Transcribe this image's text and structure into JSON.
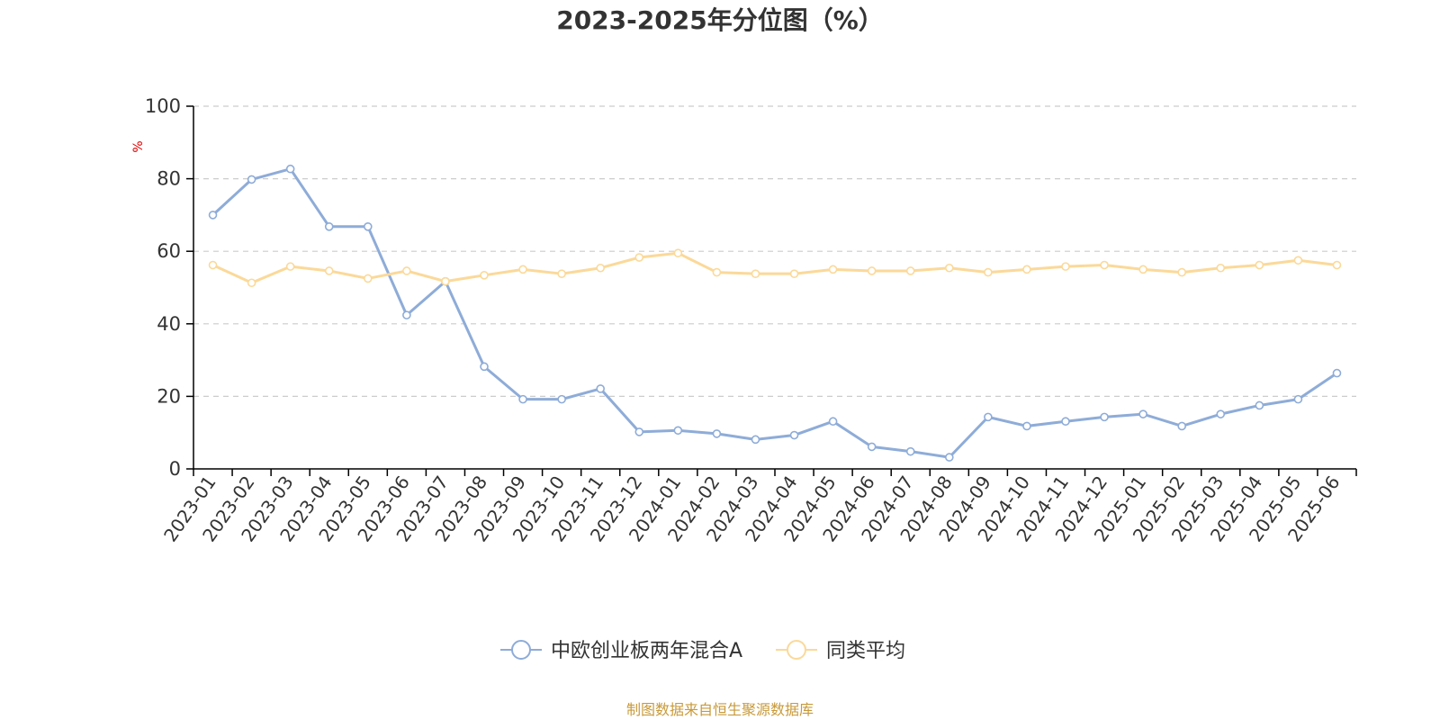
{
  "page": {
    "source": "制图数据来自恒生聚源数据库"
  },
  "chart_data": {
    "type": "line",
    "title": "2023-2025年分位图（%）",
    "xlabel": "",
    "ylabel": "%",
    "ylim": [
      0,
      100
    ],
    "yticks": [
      0,
      20,
      40,
      60,
      80,
      100
    ],
    "grid": true,
    "legend_position": "bottom-center",
    "categories": [
      "2023-01",
      "2023-02",
      "2023-03",
      "2023-04",
      "2023-05",
      "2023-06",
      "2023-07",
      "2023-08",
      "2023-09",
      "2023-10",
      "2023-11",
      "2023-12",
      "2024-01",
      "2024-02",
      "2024-03",
      "2024-04",
      "2024-05",
      "2024-06",
      "2024-07",
      "2024-08",
      "2024-09",
      "2024-10",
      "2024-11",
      "2024-12",
      "2025-01",
      "2025-02",
      "2025-03",
      "2025-04",
      "2025-05",
      "2025-06"
    ],
    "series": [
      {
        "name": "中欧创业板两年混合A",
        "color": "#8eacd8",
        "values": [
          70,
          79.8,
          82.7,
          66.8,
          66.8,
          42.4,
          51.7,
          28.2,
          19.2,
          19.2,
          22.1,
          10.2,
          10.6,
          9.7,
          8.1,
          9.3,
          13.1,
          6.1,
          4.8,
          3.2,
          14.3,
          11.8,
          13.1,
          14.3,
          15.1,
          11.8,
          15.1,
          17.5,
          19.2,
          26.4
        ]
      },
      {
        "name": "同类平均",
        "color": "#fbd999",
        "values": [
          56.2,
          51.3,
          55.8,
          54.6,
          52.5,
          54.6,
          51.7,
          53.4,
          55.0,
          53.8,
          55.4,
          58.3,
          59.5,
          54.2,
          53.8,
          53.8,
          55.0,
          54.6,
          54.6,
          55.4,
          54.2,
          55.0,
          55.8,
          56.2,
          55.0,
          54.2,
          55.4,
          56.2,
          57.5,
          56.2
        ]
      }
    ]
  }
}
